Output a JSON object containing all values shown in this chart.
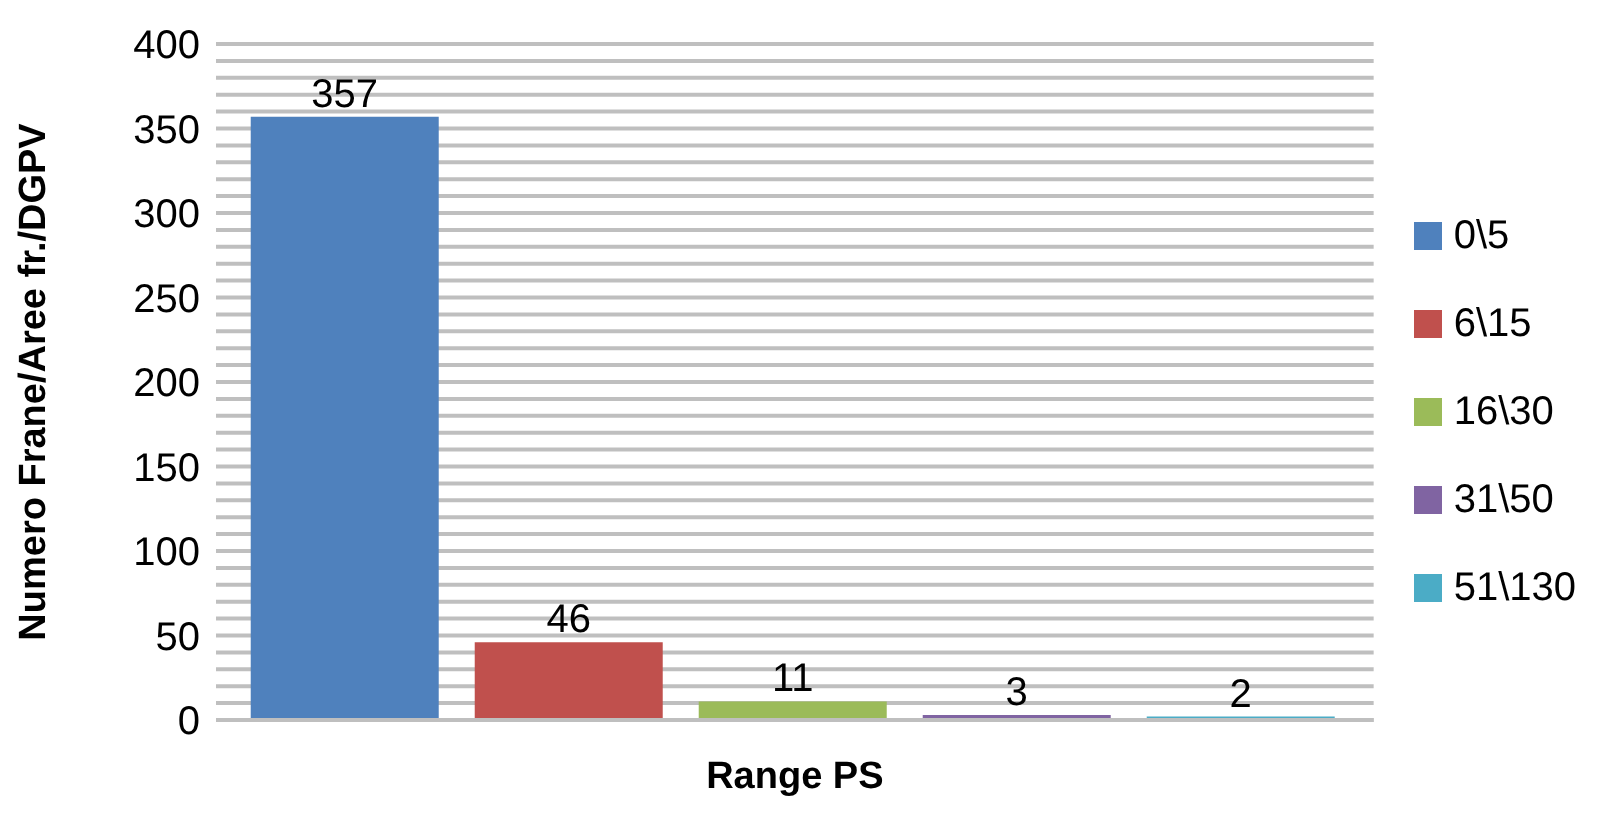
{
  "chart_data": {
    "type": "bar",
    "xlabel": "Range PS",
    "ylabel": "Numero Frane/Aree fr./DGPV",
    "categories": [
      null
    ],
    "series": [
      {
        "name": "0\\5",
        "color": "#4f81bd",
        "values": [
          357
        ]
      },
      {
        "name": "6\\15",
        "color": "#c0504d",
        "values": [
          46
        ]
      },
      {
        "name": "16\\30",
        "color": "#9bbb59",
        "values": [
          11
        ]
      },
      {
        "name": "31\\50",
        "color": "#8064a2",
        "values": [
          3
        ]
      },
      {
        "name": "51\\130",
        "color": "#4bacc6",
        "values": [
          2
        ]
      }
    ],
    "ylim": [
      0,
      400
    ],
    "yticks": [
      0,
      {
        "value": 10,
        "label": null
      },
      {
        "value": 20,
        "label": null
      },
      {
        "value": 30,
        "label": null
      },
      {
        "value": 40,
        "label": null
      },
      50,
      {
        "value": 60,
        "label": null
      },
      {
        "value": 70,
        "label": null
      },
      {
        "value": 80,
        "label": null
      },
      {
        "value": 90,
        "label": null
      },
      100,
      {
        "value": 110,
        "label": null
      },
      {
        "value": 120,
        "label": null
      },
      {
        "value": 130,
        "label": null
      },
      {
        "value": 140,
        "label": null
      },
      150,
      {
        "value": 160,
        "label": null
      },
      {
        "value": 170,
        "label": null
      },
      {
        "value": 180,
        "label": null
      },
      {
        "value": 190,
        "label": null
      },
      200,
      {
        "value": 210,
        "label": null
      },
      {
        "value": 220,
        "label": null
      },
      {
        "value": 230,
        "label": null
      },
      {
        "value": 240,
        "label": null
      },
      250,
      {
        "value": 260,
        "label": null
      },
      {
        "value": 270,
        "label": null
      },
      {
        "value": 280,
        "label": null
      },
      {
        "value": 290,
        "label": null
      },
      300,
      {
        "value": 310,
        "label": null
      },
      {
        "value": 320,
        "label": null
      },
      {
        "value": 330,
        "label": null
      },
      {
        "value": 340,
        "label": null
      },
      350,
      {
        "value": 360,
        "label": null
      },
      {
        "value": 370,
        "label": null
      },
      {
        "value": 380,
        "label": null
      },
      {
        "value": 390,
        "label": null
      },
      400
    ],
    "grid": "y",
    "legend": "right",
    "data_labels": true
  }
}
